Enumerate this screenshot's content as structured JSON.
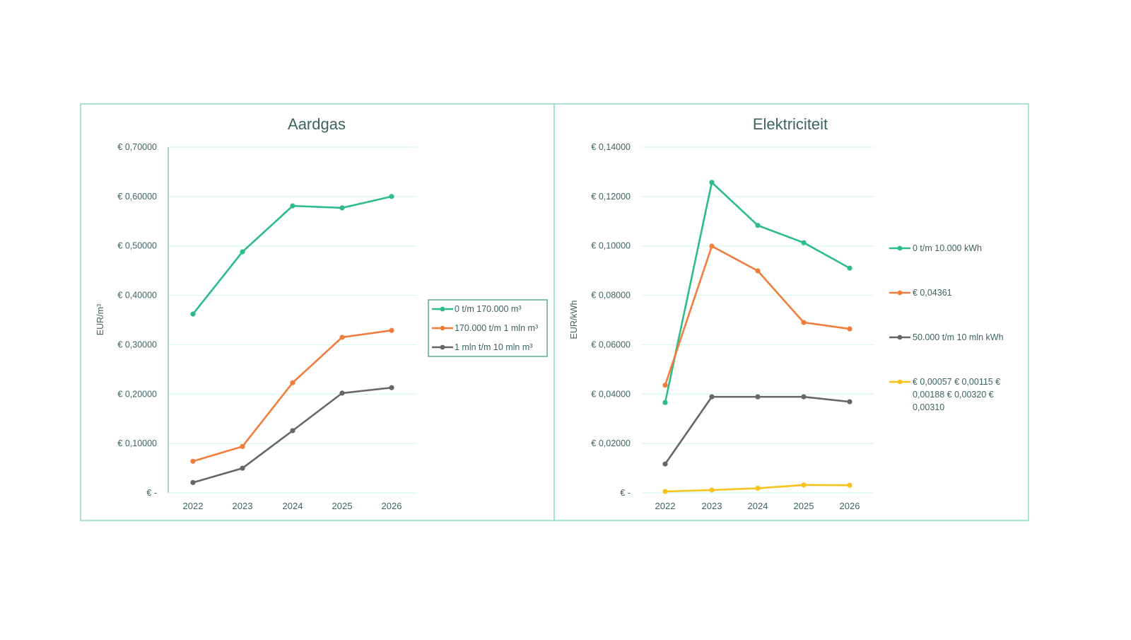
{
  "colors": {
    "green": "#2dbb8a",
    "orange": "#f07d3c",
    "gray": "#666666",
    "yellow": "#f7c21b",
    "text": "#3d6360",
    "border": "#8ddcc0",
    "grid": "#d8f6f2"
  },
  "chart_data": [
    {
      "type": "line",
      "title": "Aardgas",
      "ylabel": "EUR/m³",
      "xlabel": "",
      "categories": [
        "2022",
        "2023",
        "2024",
        "2025",
        "2026"
      ],
      "ylim": [
        0,
        0.7
      ],
      "yticks": [
        0,
        0.1,
        0.2,
        0.3,
        0.4,
        0.5,
        0.6,
        0.7
      ],
      "ytick_labels": [
        "€ -",
        "€ 0,10000",
        "€ 0,20000",
        "€ 0,30000",
        "€ 0,40000",
        "€ 0,50000",
        "€ 0,60000",
        "€ 0,70000"
      ],
      "grid": true,
      "legend_placement": "right, boxed",
      "series": [
        {
          "name": "0 t/m 170.000 m³",
          "color": "green",
          "values": [
            0.362,
            0.488,
            0.581,
            0.577,
            0.6
          ]
        },
        {
          "name": "170.000 t/m 1 mln m³",
          "color": "orange",
          "values": [
            0.064,
            0.094,
            0.223,
            0.315,
            0.329
          ]
        },
        {
          "name": "1 mln t/m 10 mln m³",
          "color": "gray",
          "values": [
            0.021,
            0.05,
            0.126,
            0.202,
            0.213
          ]
        }
      ]
    },
    {
      "type": "line",
      "title": "Elektriciteit",
      "ylabel": "EUR/kWh",
      "xlabel": "",
      "categories": [
        "2022",
        "2023",
        "2024",
        "2025",
        "2026"
      ],
      "ylim": [
        0,
        0.14
      ],
      "yticks": [
        0,
        0.02,
        0.04,
        0.06,
        0.08,
        0.1,
        0.12,
        0.14
      ],
      "ytick_labels": [
        "€ -",
        "€ 0,02000",
        "€ 0,04000",
        "€ 0,06000",
        "€ 0,08000",
        "€ 0,10000",
        "€ 0,12000",
        "€ 0,14000"
      ],
      "grid": true,
      "legend_placement": "right",
      "series": [
        {
          "name": "0 t/m 10.000 kWh",
          "color": "green",
          "values": [
            0.0366,
            0.1257,
            0.1083,
            0.1013,
            0.091
          ]
        },
        {
          "name": "€ 0,04361",
          "color": "orange",
          "values": [
            0.04361,
            0.0999,
            0.0899,
            0.069,
            0.0664
          ]
        },
        {
          "name": "50.000 t/m 10 mln kWh",
          "color": "gray",
          "values": [
            0.0117,
            0.0389,
            0.0389,
            0.0389,
            0.0369
          ]
        },
        {
          "name": "€ 0,00057  € 0,00115  € 0,00188  € 0,00320  € 0,00310",
          "name_lines": [
            "€ 0,00057  € 0,00115  €",
            "0,00188  € 0,00320  €",
            "0,00310"
          ],
          "color": "yellow",
          "values": [
            0.00057,
            0.00115,
            0.00188,
            0.0032,
            0.0031
          ]
        }
      ]
    }
  ]
}
